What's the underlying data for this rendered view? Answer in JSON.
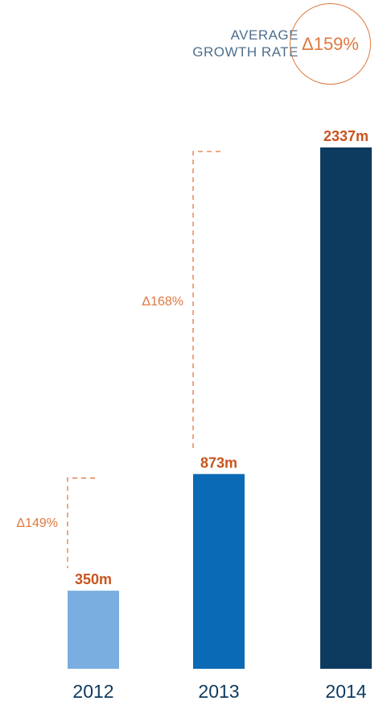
{
  "average": {
    "label_line1": "AVERAGE",
    "label_line2": "GROWTH RATE",
    "value": "Δ159%"
  },
  "colors": {
    "bar_2012": "#7aaee0",
    "bar_2013": "#0a6ab5",
    "bar_2014": "#0d3a5f",
    "value_label": "#c8541e",
    "growth": "#e07840",
    "year_label": "#0d3a5f"
  },
  "chart_data": {
    "type": "bar",
    "categories": [
      "2012",
      "2013",
      "2014"
    ],
    "values": [
      350,
      873,
      2337
    ],
    "value_labels": [
      "350m",
      "873m",
      "2337m"
    ],
    "growth_labels": [
      "Δ149%",
      "Δ168%"
    ],
    "title": "",
    "xlabel": "",
    "ylabel": "",
    "ylim": [
      0,
      2337
    ],
    "grid": false,
    "legend": "none"
  }
}
